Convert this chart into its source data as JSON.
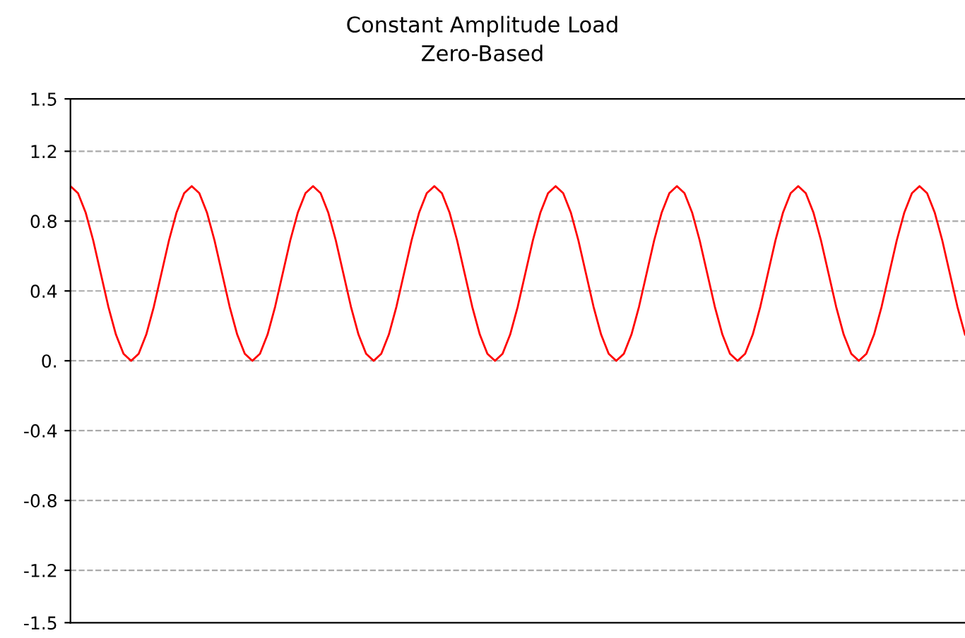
{
  "chart_data": {
    "type": "line",
    "title": "Constant Amplitude Load",
    "subtitle": "Zero-Based",
    "categories": [
      null,
      null,
      null,
      null,
      null,
      null,
      null,
      null,
      null,
      null,
      null,
      null,
      null,
      null,
      null,
      null,
      null,
      null,
      null,
      null,
      null,
      null,
      null,
      null,
      null,
      null,
      null,
      null,
      null,
      null,
      null,
      null,
      null,
      null,
      null,
      null,
      null,
      null,
      null,
      null,
      null,
      null,
      null,
      null,
      null,
      null,
      null,
      null,
      null,
      null,
      null,
      null,
      null,
      null,
      null,
      null,
      null,
      null,
      null,
      null,
      null,
      null,
      null,
      null,
      null,
      null,
      null,
      null,
      null,
      null,
      null,
      null,
      null,
      null,
      null,
      null,
      null,
      null,
      null,
      null,
      null,
      null,
      null,
      null,
      null,
      null,
      null,
      null,
      null,
      null,
      null,
      null,
      null,
      null,
      null,
      null,
      null,
      null,
      null,
      null,
      null,
      null,
      null,
      null,
      null,
      null,
      null,
      null,
      null,
      null,
      null,
      null,
      null,
      null,
      null,
      null,
      null,
      null,
      null
    ],
    "series": [
      {
        "color": "#ff0000",
        "values": [
          1,
          0.96,
          0.85,
          0.69,
          0.5,
          0.31,
          0.15,
          0.04,
          0,
          0.04,
          0.15,
          0.31,
          0.5,
          0.69,
          0.85,
          0.96,
          1,
          0.96,
          0.85,
          0.69,
          0.5,
          0.31,
          0.15,
          0.04,
          0,
          0.04,
          0.15,
          0.31,
          0.5,
          0.69,
          0.85,
          0.96,
          1,
          0.96,
          0.85,
          0.69,
          0.5,
          0.31,
          0.15,
          0.04,
          0,
          0.04,
          0.15,
          0.31,
          0.5,
          0.69,
          0.85,
          0.96,
          1,
          0.96,
          0.85,
          0.69,
          0.5,
          0.31,
          0.15,
          0.04,
          0,
          0.04,
          0.15,
          0.31,
          0.5,
          0.69,
          0.85,
          0.96,
          1,
          0.96,
          0.85,
          0.69,
          0.5,
          0.31,
          0.15,
          0.04,
          0,
          0.04,
          0.15,
          0.31,
          0.5,
          0.69,
          0.85,
          0.96,
          1,
          0.96,
          0.85,
          0.69,
          0.5,
          0.31,
          0.15,
          0.04,
          0,
          0.04,
          0.15,
          0.31,
          0.5,
          0.69,
          0.85,
          0.96,
          1,
          0.96,
          0.85,
          0.69,
          0.5,
          0.31,
          0.15,
          0.04,
          0,
          0.04,
          0.15,
          0.31,
          0.5,
          0.69,
          0.85,
          0.96,
          1,
          0.96,
          0.85,
          0.69,
          0.5,
          0.31,
          0.15
        ]
      }
    ],
    "ylim": [
      -1.5,
      1.5
    ],
    "yticks": [
      -1.5,
      -1.2,
      -0.8,
      -0.4,
      {
        "value": 0,
        "label": "0."
      },
      0.4,
      0.8,
      1.2,
      1.5
    ],
    "grid": "y",
    "tick_labels": "y",
    "marker": "none",
    "line_style": "solid"
  }
}
